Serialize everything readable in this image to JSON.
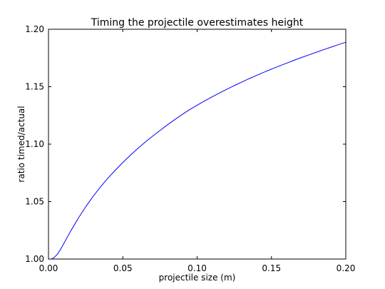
{
  "chart_data": {
    "type": "line",
    "title": "Timing the projectile overestimates height",
    "xlabel": "projectile size (m)",
    "ylabel": "ratio timed/actual",
    "xlim": [
      0.0,
      0.2
    ],
    "ylim": [
      1.0,
      1.2
    ],
    "xticks": [
      {
        "value": 0.0,
        "label": "0.00"
      },
      {
        "value": 0.05,
        "label": "0.05"
      },
      {
        "value": 0.1,
        "label": "0.10"
      },
      {
        "value": 0.15,
        "label": "0.15"
      },
      {
        "value": 0.2,
        "label": "0.20"
      }
    ],
    "yticks": [
      {
        "value": 1.0,
        "label": "1.00"
      },
      {
        "value": 1.05,
        "label": "1.05"
      },
      {
        "value": 1.1,
        "label": "1.10"
      },
      {
        "value": 1.15,
        "label": "1.15"
      },
      {
        "value": 1.2,
        "label": "1.20"
      }
    ],
    "grid": false,
    "legend": "none",
    "series": [
      {
        "color": "#0000ff",
        "x": [
          0.0,
          0.002,
          0.004,
          0.006,
          0.008,
          0.01,
          0.012,
          0.015,
          0.02,
          0.025,
          0.03,
          0.035,
          0.04,
          0.045,
          0.05,
          0.055,
          0.06,
          0.065,
          0.07,
          0.075,
          0.08,
          0.085,
          0.09,
          0.095,
          0.1,
          0.105,
          0.11,
          0.115,
          0.12,
          0.125,
          0.13,
          0.135,
          0.14,
          0.145,
          0.15,
          0.155,
          0.16,
          0.165,
          0.17,
          0.175,
          0.18,
          0.185,
          0.19,
          0.195,
          0.2
        ],
        "y": [
          1.0,
          1.0,
          1.0015,
          1.0042,
          1.0082,
          1.0128,
          1.0175,
          1.0245,
          1.0354,
          1.0454,
          1.0545,
          1.0628,
          1.0704,
          1.0774,
          1.084,
          1.0902,
          1.0961,
          1.1017,
          1.1069,
          1.1119,
          1.1168,
          1.1214,
          1.1259,
          1.1301,
          1.1339,
          1.1376,
          1.1411,
          1.1445,
          1.1478,
          1.151,
          1.154,
          1.157,
          1.1598,
          1.1626,
          1.1653,
          1.1679,
          1.1704,
          1.1729,
          1.1753,
          1.1776,
          1.1799,
          1.1822,
          1.1844,
          1.1866,
          1.1887
        ]
      }
    ]
  }
}
